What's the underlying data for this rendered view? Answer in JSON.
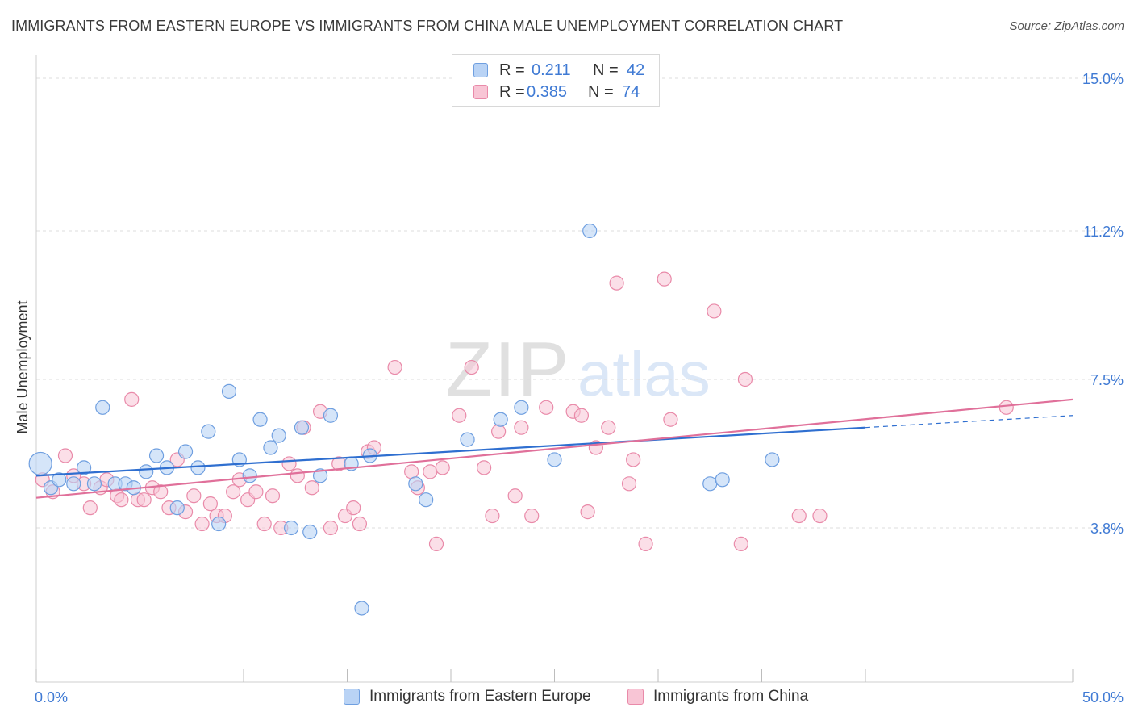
{
  "header": {
    "title": "IMMIGRANTS FROM EASTERN EUROPE VS IMMIGRANTS FROM CHINA MALE UNEMPLOYMENT CORRELATION CHART",
    "source": "Source: ZipAtlas.com"
  },
  "watermark": {
    "zip": "ZIP",
    "atlas": "atlas"
  },
  "legend": {
    "rows": [
      {
        "r_label": "R =",
        "r_value": "0.211",
        "n_label": "N =",
        "n_value": "42"
      },
      {
        "r_label": "R =",
        "r_value": "0.385",
        "n_label": "N =",
        "n_value": "74"
      }
    ]
  },
  "bottom_legend": {
    "series1": "Immigrants from Eastern Europe",
    "series2": "Immigrants from China"
  },
  "colors": {
    "blue_fill": "#b9d3f5",
    "blue_stroke": "#6f9fe0",
    "blue_line": "#2f6fd0",
    "pink_fill": "#f8c5d5",
    "pink_stroke": "#e98aa9",
    "pink_line": "#e0709a",
    "tick_label": "#3f7ad4"
  },
  "chart_data": {
    "type": "scatter",
    "title": "IMMIGRANTS FROM EASTERN EUROPE VS IMMIGRANTS FROM CHINA MALE UNEMPLOYMENT CORRELATION CHART",
    "xlabel": "",
    "ylabel": "Male Unemployment",
    "xlim": [
      0,
      50
    ],
    "ylim": [
      0,
      15
    ],
    "x_tick_labels": [
      "0.0%",
      "50.0%"
    ],
    "y_ticks": [
      3.8,
      7.5,
      11.2,
      15.0
    ],
    "y_tick_labels": [
      "3.8%",
      "7.5%",
      "11.2%",
      "15.0%"
    ],
    "grid": true,
    "legend_position": "top-center",
    "series": [
      {
        "name": "Immigrants from Eastern Europe",
        "R": 0.211,
        "N": 42,
        "trend": {
          "x0": 0,
          "y0": 5.1,
          "x1": 40,
          "y1": 6.3,
          "dash_to_x": 50,
          "dash_to_y": 6.6
        },
        "points": [
          [
            0.2,
            5.4
          ],
          [
            0.7,
            4.8
          ],
          [
            1.1,
            5.0
          ],
          [
            1.8,
            4.9
          ],
          [
            2.3,
            5.3
          ],
          [
            2.8,
            4.9
          ],
          [
            3.2,
            6.8
          ],
          [
            3.8,
            4.9
          ],
          [
            4.3,
            4.9
          ],
          [
            4.7,
            4.8
          ],
          [
            5.3,
            5.2
          ],
          [
            5.8,
            5.6
          ],
          [
            6.3,
            5.3
          ],
          [
            6.8,
            4.3
          ],
          [
            7.2,
            5.7
          ],
          [
            7.8,
            5.3
          ],
          [
            8.3,
            6.2
          ],
          [
            8.8,
            3.9
          ],
          [
            9.3,
            7.2
          ],
          [
            9.8,
            5.5
          ],
          [
            10.3,
            5.1
          ],
          [
            10.8,
            6.5
          ],
          [
            11.3,
            5.8
          ],
          [
            11.7,
            6.1
          ],
          [
            12.3,
            3.8
          ],
          [
            12.8,
            6.3
          ],
          [
            13.2,
            3.7
          ],
          [
            13.7,
            5.1
          ],
          [
            14.2,
            6.6
          ],
          [
            15.2,
            5.4
          ],
          [
            15.7,
            1.8
          ],
          [
            16.1,
            5.6
          ],
          [
            18.3,
            4.9
          ],
          [
            18.8,
            4.5
          ],
          [
            20.8,
            6.0
          ],
          [
            22.4,
            6.5
          ],
          [
            23.4,
            6.8
          ],
          [
            25.0,
            5.5
          ],
          [
            26.7,
            11.2
          ],
          [
            32.5,
            4.9
          ],
          [
            33.1,
            5.0
          ],
          [
            35.5,
            5.5
          ]
        ]
      },
      {
        "name": "Immigrants from China",
        "R": 0.385,
        "N": 74,
        "trend": {
          "x0": 0,
          "y0": 4.55,
          "x1": 50,
          "y1": 7.0
        },
        "points": [
          [
            0.3,
            5.0
          ],
          [
            0.8,
            4.7
          ],
          [
            1.4,
            5.6
          ],
          [
            1.8,
            5.1
          ],
          [
            2.3,
            4.9
          ],
          [
            2.6,
            4.3
          ],
          [
            3.1,
            4.8
          ],
          [
            3.4,
            5.0
          ],
          [
            3.9,
            4.6
          ],
          [
            4.1,
            4.5
          ],
          [
            4.6,
            7.0
          ],
          [
            4.9,
            4.5
          ],
          [
            5.2,
            4.5
          ],
          [
            5.6,
            4.8
          ],
          [
            6.0,
            4.7
          ],
          [
            6.4,
            4.3
          ],
          [
            6.8,
            5.5
          ],
          [
            7.2,
            4.2
          ],
          [
            7.6,
            4.6
          ],
          [
            8.0,
            3.9
          ],
          [
            8.4,
            4.4
          ],
          [
            8.7,
            4.1
          ],
          [
            9.1,
            4.1
          ],
          [
            9.5,
            4.7
          ],
          [
            9.8,
            5.0
          ],
          [
            10.2,
            4.5
          ],
          [
            10.6,
            4.7
          ],
          [
            11.0,
            3.9
          ],
          [
            11.4,
            4.6
          ],
          [
            11.8,
            3.8
          ],
          [
            12.2,
            5.4
          ],
          [
            12.6,
            5.1
          ],
          [
            12.9,
            6.3
          ],
          [
            13.3,
            4.8
          ],
          [
            13.7,
            6.7
          ],
          [
            14.2,
            3.8
          ],
          [
            14.6,
            5.4
          ],
          [
            14.9,
            4.1
          ],
          [
            15.3,
            4.3
          ],
          [
            15.6,
            3.9
          ],
          [
            16.0,
            5.7
          ],
          [
            16.3,
            5.8
          ],
          [
            17.3,
            7.8
          ],
          [
            18.1,
            5.2
          ],
          [
            18.4,
            4.8
          ],
          [
            19.0,
            5.2
          ],
          [
            19.3,
            3.4
          ],
          [
            19.6,
            5.3
          ],
          [
            20.4,
            6.6
          ],
          [
            21.0,
            7.8
          ],
          [
            21.6,
            5.3
          ],
          [
            22.0,
            4.1
          ],
          [
            22.3,
            6.2
          ],
          [
            23.1,
            4.6
          ],
          [
            23.4,
            6.3
          ],
          [
            23.9,
            4.1
          ],
          [
            24.6,
            6.8
          ],
          [
            25.9,
            6.7
          ],
          [
            26.3,
            6.6
          ],
          [
            26.6,
            4.2
          ],
          [
            27.0,
            5.8
          ],
          [
            27.6,
            6.3
          ],
          [
            28.0,
            9.9
          ],
          [
            28.6,
            4.9
          ],
          [
            28.8,
            5.5
          ],
          [
            29.4,
            3.4
          ],
          [
            30.3,
            10.0
          ],
          [
            30.6,
            6.5
          ],
          [
            32.7,
            9.2
          ],
          [
            34.0,
            3.4
          ],
          [
            34.2,
            7.5
          ],
          [
            36.8,
            4.1
          ],
          [
            37.8,
            4.1
          ],
          [
            46.8,
            6.8
          ]
        ]
      }
    ]
  }
}
